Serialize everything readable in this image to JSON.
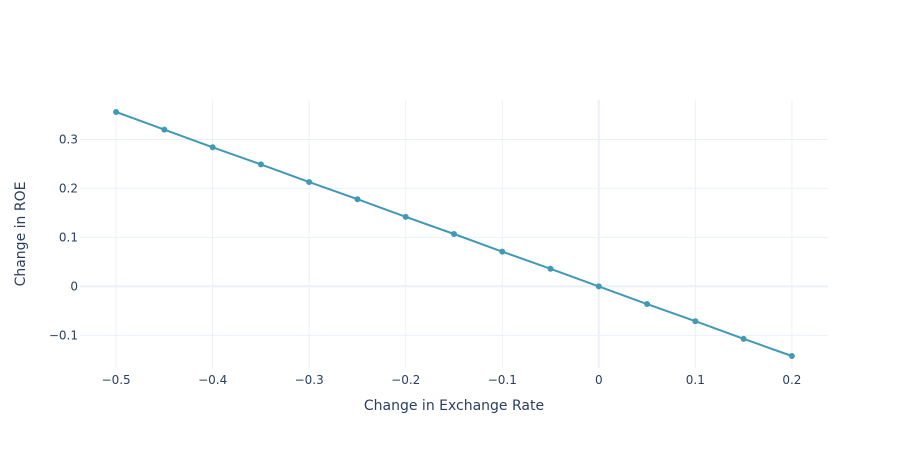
{
  "chart_data": {
    "type": "line",
    "title": "",
    "xlabel": "Change in Exchange Rate",
    "ylabel": "Change in ROE",
    "x": [
      -0.5,
      -0.45,
      -0.4,
      -0.35,
      -0.3,
      -0.25,
      -0.2,
      -0.15,
      -0.1,
      -0.05,
      0,
      0.05,
      0.1,
      0.15,
      0.2
    ],
    "series": [
      {
        "name": "",
        "values": [
          0.356,
          0.32,
          0.284,
          0.249,
          0.213,
          0.178,
          0.142,
          0.107,
          0.071,
          0.036,
          0,
          -0.036,
          -0.071,
          -0.107,
          -0.142
        ],
        "color": "#4299b5",
        "mode": "lines+markers"
      }
    ],
    "xlim": [
      -0.5374,
      0.2374
    ],
    "ylim": [
      -0.1665,
      0.3805
    ],
    "xticks": [
      -0.5,
      -0.4,
      -0.3,
      -0.2,
      -0.1,
      0,
      0.1,
      0.2
    ],
    "xtick_labels": [
      "−0.5",
      "−0.4",
      "−0.3",
      "−0.2",
      "−0.1",
      "0",
      "0.1",
      "0.2"
    ],
    "yticks": [
      -0.1,
      0,
      0.1,
      0.2,
      0.3
    ],
    "ytick_labels": [
      "−0.1",
      "0",
      "0.1",
      "0.2",
      "0.3"
    ],
    "grid": true,
    "legend": "none"
  }
}
